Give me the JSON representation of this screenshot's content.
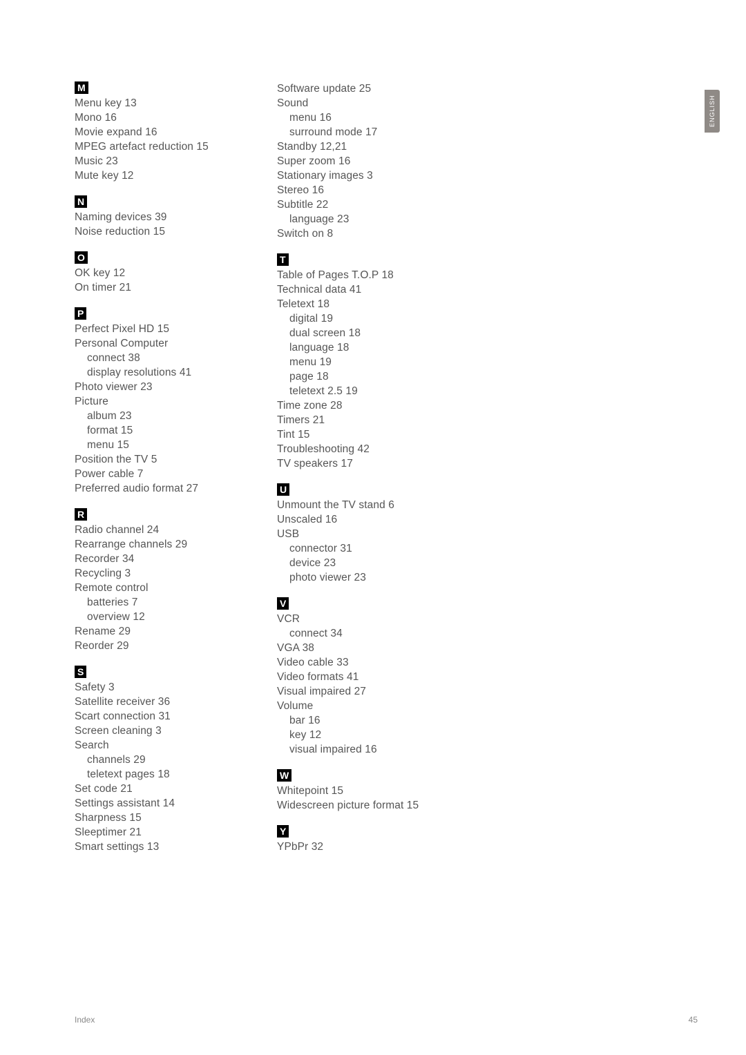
{
  "langTab": "ENGLISH",
  "footer": {
    "label": "Index",
    "page": "45"
  },
  "columns": [
    [
      {
        "letter": "M",
        "entries": [
          {
            "t": "Menu key  13"
          },
          {
            "t": "Mono  16"
          },
          {
            "t": "Movie expand  16"
          },
          {
            "t": "MPEG artefact reduction  15"
          },
          {
            "t": "Music  23"
          },
          {
            "t": "Mute key  12"
          }
        ]
      },
      {
        "letter": "N",
        "entries": [
          {
            "t": "Naming devices  39"
          },
          {
            "t": "Noise reduction  15"
          }
        ]
      },
      {
        "letter": "O",
        "entries": [
          {
            "t": "OK key  12"
          },
          {
            "t": "On timer  21"
          }
        ]
      },
      {
        "letter": "P",
        "entries": [
          {
            "t": "Perfect Pixel HD  15"
          },
          {
            "t": "Personal Computer"
          },
          {
            "t": "connect  38",
            "sub": true
          },
          {
            "t": "display resolutions  41",
            "sub": true
          },
          {
            "t": "Photo viewer  23"
          },
          {
            "t": "Picture"
          },
          {
            "t": "album  23",
            "sub": true
          },
          {
            "t": "format  15",
            "sub": true
          },
          {
            "t": "menu  15",
            "sub": true
          },
          {
            "t": "Position the TV  5"
          },
          {
            "t": "Power cable  7"
          },
          {
            "t": "Preferred audio format  27"
          }
        ]
      },
      {
        "letter": "R",
        "entries": [
          {
            "t": "Radio channel  24"
          },
          {
            "t": "Rearrange channels  29"
          },
          {
            "t": "Recorder  34"
          },
          {
            "t": "Recycling  3"
          },
          {
            "t": "Remote control"
          },
          {
            "t": "batteries  7",
            "sub": true
          },
          {
            "t": "overview  12",
            "sub": true
          },
          {
            "t": "Rename  29"
          },
          {
            "t": "Reorder  29"
          }
        ]
      },
      {
        "letter": "S",
        "entries": [
          {
            "t": "Safety  3"
          },
          {
            "t": "Satellite receiver  36"
          },
          {
            "t": "Scart connection  31"
          },
          {
            "t": "Screen cleaning  3"
          },
          {
            "t": "Search"
          },
          {
            "t": "channels  29",
            "sub": true
          },
          {
            "t": "teletext pages  18",
            "sub": true
          },
          {
            "t": "Set code  21"
          },
          {
            "t": "Settings assistant  14"
          },
          {
            "t": "Sharpness  15"
          },
          {
            "t": "Sleeptimer  21"
          },
          {
            "t": "Smart settings  13"
          }
        ]
      }
    ],
    [
      {
        "letter": null,
        "entries": [
          {
            "t": "Software update  25"
          },
          {
            "t": "Sound"
          },
          {
            "t": "menu  16",
            "sub": true
          },
          {
            "t": "surround mode  17",
            "sub": true
          },
          {
            "t": "Standby  12,21"
          },
          {
            "t": "Super zoom  16"
          },
          {
            "t": "Stationary images  3"
          },
          {
            "t": "Stereo  16"
          },
          {
            "t": "Subtitle  22"
          },
          {
            "t": "language  23",
            "sub": true
          },
          {
            "t": "Switch on  8"
          }
        ]
      },
      {
        "letter": "T",
        "entries": [
          {
            "t": "Table of Pages T.O.P  18"
          },
          {
            "t": "Technical data  41"
          },
          {
            "t": "Teletext  18"
          },
          {
            "t": "digital  19",
            "sub": true
          },
          {
            "t": "dual screen  18",
            "sub": true
          },
          {
            "t": "language  18",
            "sub": true
          },
          {
            "t": "menu  19",
            "sub": true
          },
          {
            "t": "page  18",
            "sub": true
          },
          {
            "t": "teletext 2.5  19",
            "sub": true
          },
          {
            "t": "Time zone  28"
          },
          {
            "t": "Timers  21"
          },
          {
            "t": "Tint  15"
          },
          {
            "t": "Troubleshooting  42"
          },
          {
            "t": "TV speakers  17"
          }
        ]
      },
      {
        "letter": "U",
        "entries": [
          {
            "t": "Unmount the TV stand  6"
          },
          {
            "t": "Unscaled  16"
          },
          {
            "t": "USB"
          },
          {
            "t": "connector  31",
            "sub": true
          },
          {
            "t": "device  23",
            "sub": true
          },
          {
            "t": "photo viewer  23",
            "sub": true
          }
        ]
      },
      {
        "letter": "V",
        "entries": [
          {
            "t": "VCR"
          },
          {
            "t": "connect  34",
            "sub": true
          },
          {
            "t": "VGA  38"
          },
          {
            "t": "Video cable  33"
          },
          {
            "t": "Video formats  41"
          },
          {
            "t": "Visual impaired  27"
          },
          {
            "t": "Volume"
          },
          {
            "t": "bar  16",
            "sub": true
          },
          {
            "t": "key  12",
            "sub": true
          },
          {
            "t": "visual impaired  16",
            "sub": true
          }
        ]
      },
      {
        "letter": "W",
        "entries": [
          {
            "t": "Whitepoint  15"
          },
          {
            "t": "Widescreen picture format  15"
          }
        ]
      },
      {
        "letter": "Y",
        "entries": [
          {
            "t": "YPbPr  32"
          }
        ]
      }
    ]
  ]
}
